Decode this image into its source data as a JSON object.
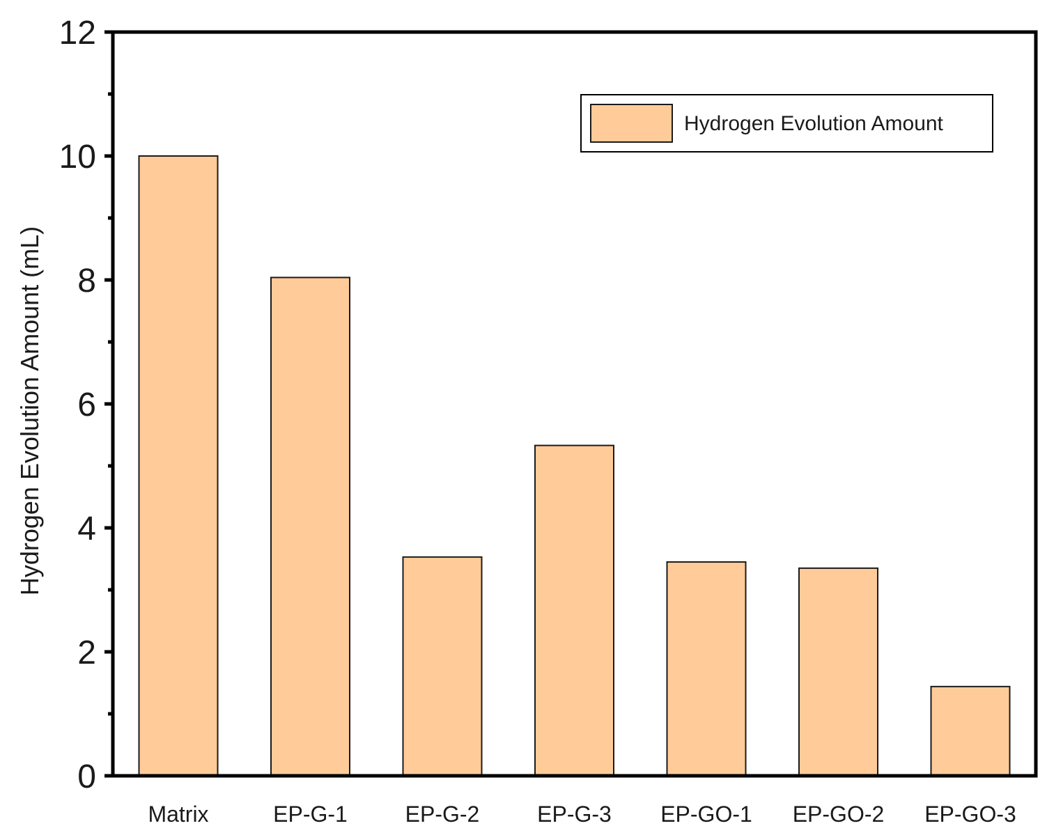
{
  "chart_data": {
    "type": "bar",
    "categories": [
      "Matrix",
      "EP-G-1",
      "EP-G-2",
      "EP-G-3",
      "EP-GO-1",
      "EP-GO-2",
      "EP-GO-3"
    ],
    "series": [
      {
        "name": "Hydrogen Evolution Amount",
        "values": [
          10.0,
          8.04,
          3.53,
          5.33,
          3.45,
          3.35,
          1.44
        ]
      }
    ],
    "title": "",
    "xlabel": "",
    "ylabel": "Hydrogen Evolution Amount (mL)",
    "ylim": [
      0,
      12
    ],
    "yticks": [
      0,
      2,
      4,
      6,
      8,
      10,
      12
    ],
    "yticklabels": [
      "0",
      "2",
      "4",
      "6",
      "8",
      "10",
      "12"
    ],
    "grid": false,
    "legend_position": "top-right",
    "colors": {
      "bar_fill": "#FFCC99",
      "bar_stroke": "#1a1a1a",
      "axis": "#000000"
    }
  }
}
